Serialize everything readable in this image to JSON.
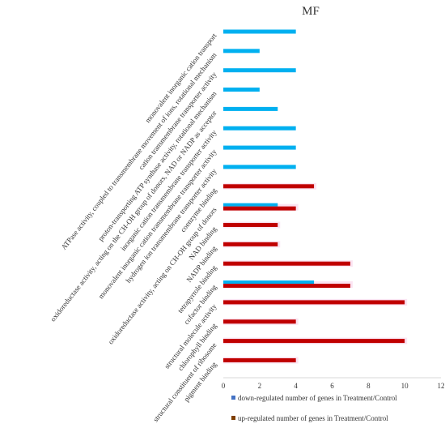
{
  "chart_data": {
    "type": "bar",
    "orientation": "horizontal",
    "title": "MF",
    "categories": [
      "monovalent inorganic cation transport",
      "ATPase activity, coupled to transmembrane movement of ions, rotational mechanism",
      "cation transmembrane transporter activity",
      "proton-transporting ATP synthase activity, rotational mechanism",
      "oxidoreductase activity, acting on the CH-OH group of donors, NAD or NADP as acceptor",
      "inorganic cation transmembrane transporter activity",
      "monovalent inorganic cation transmembrane transporter activity",
      "hydrogen ion transmembrane transporter activity",
      "coenzyme binding",
      "oxidoreductase activity, acting on CH-OH group of donors",
      "NAD binding",
      "NADP binding",
      "tetrapyrrole binding",
      "cofactor binding",
      "structural molecule activity",
      "chlorophyll binding",
      "structural constituent of ribosome",
      "pigment binding"
    ],
    "series": [
      {
        "name": "down-regulated number of genes in Treatment/Control",
        "color": "#00b0f0",
        "values": [
          4,
          2,
          4,
          2,
          3,
          4,
          4,
          4,
          0,
          3,
          0,
          0,
          0,
          5,
          0,
          0,
          0,
          0
        ]
      },
      {
        "name": "up-regulated number of genes in Treatment/Control",
        "color": "#c00000",
        "values": [
          0,
          0,
          0,
          0,
          0,
          0,
          0,
          0,
          5,
          4,
          3,
          3,
          7,
          7,
          10,
          4,
          10,
          4
        ]
      }
    ],
    "xlim": [
      0,
      12
    ],
    "xticks": [
      "0",
      "2",
      "4",
      "6",
      "8",
      "10",
      "12"
    ],
    "legend_position": "bottom-right",
    "grid": false
  }
}
